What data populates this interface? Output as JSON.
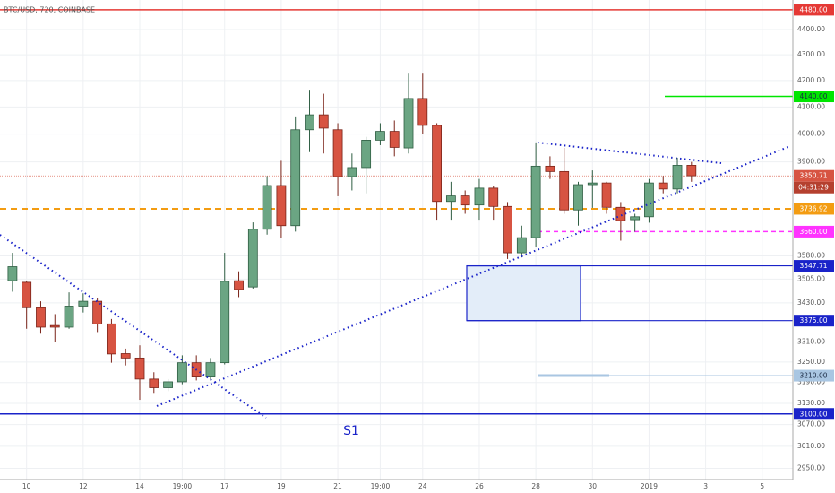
{
  "chart_data": {
    "type": "candlestick",
    "title": "BTC/USD, 720, COINBASE",
    "annotation": "S1",
    "countdown": "04:31:29",
    "log_scale": true,
    "grid": true,
    "up_color": "#6ba583",
    "down_color": "#d75442",
    "categories": [
      null,
      "10",
      null,
      null,
      null,
      "12",
      null,
      null,
      null,
      "14",
      null,
      null,
      "19:00",
      null,
      null,
      "17",
      null,
      null,
      null,
      "19",
      null,
      null,
      null,
      "21",
      null,
      null,
      "19:00",
      null,
      null,
      "24",
      null,
      null,
      null,
      "26",
      null,
      null,
      null,
      "28",
      null,
      null,
      null,
      "30",
      null,
      null,
      null,
      "2019",
      null,
      null,
      null,
      "3",
      null,
      null,
      null,
      "5",
      null
    ],
    "open": [
      3500,
      3495,
      3415,
      3360,
      3355,
      3420,
      3435,
      3365,
      3275,
      3262,
      3200,
      3175,
      3192,
      3248,
      3206,
      3248,
      3500,
      3480,
      3668,
      3817,
      3680,
      4016,
      4071,
      4016,
      3848,
      3880,
      3978,
      4010,
      3950,
      4132,
      4032,
      3762,
      3781,
      3750,
      3808,
      3745,
      3590,
      3640,
      3885,
      3866,
      3733,
      3820,
      3826,
      3742,
      3700,
      3710,
      3826,
      3805,
      3888,
      null,
      null,
      null,
      null,
      null,
      null
    ],
    "high": [
      3590,
      3500,
      3435,
      3395,
      3463,
      3460,
      3445,
      3380,
      3290,
      3300,
      3220,
      3200,
      3270,
      3270,
      3262,
      3590,
      3530,
      3691,
      3850,
      3904,
      4065,
      4165,
      4150,
      4040,
      3930,
      3990,
      4040,
      4050,
      4230,
      4230,
      4040,
      3830,
      3800,
      3840,
      3815,
      3760,
      3680,
      3970,
      3920,
      3950,
      3830,
      3870,
      3830,
      3760,
      3720,
      3840,
      3850,
      3915,
      3900,
      null,
      null,
      null,
      null,
      null,
      null
    ],
    "low": [
      3465,
      3350,
      3335,
      3310,
      3350,
      3400,
      3340,
      3248,
      3240,
      3140,
      3160,
      3165,
      3185,
      3196,
      3196,
      3243,
      3448,
      3475,
      3650,
      3640,
      3660,
      3935,
      3930,
      3780,
      3800,
      3790,
      3960,
      3920,
      3930,
      4000,
      3700,
      3700,
      3720,
      3700,
      3700,
      3570,
      3575,
      3610,
      3840,
      3720,
      3680,
      3740,
      3720,
      3630,
      3660,
      3690,
      3790,
      3790,
      3830,
      null,
      null,
      null,
      null,
      null,
      null
    ],
    "close": [
      3545,
      3415,
      3355,
      3355,
      3420,
      3435,
      3365,
      3274,
      3262,
      3200,
      3175,
      3192,
      3248,
      3206,
      3248,
      3498,
      3472,
      3668,
      3817,
      3680,
      4016,
      4071,
      4022,
      3848,
      3880,
      3978,
      4010,
      3952,
      4132,
      4032,
      3762,
      3781,
      3750,
      3808,
      3745,
      3590,
      3640,
      3885,
      3866,
      3733,
      3820,
      3826,
      3742,
      3697,
      3710,
      3826,
      3805,
      3888,
      3851,
      null,
      null,
      null,
      null,
      null,
      null
    ],
    "ylim": [
      2920,
      4520
    ],
    "yticks": [
      {
        "value": 2950,
        "label": "2950.00"
      },
      {
        "value": 3010,
        "label": "3010.00"
      },
      {
        "value": 3070,
        "label": "3070.00"
      },
      {
        "value": 3130,
        "label": "3130.00"
      },
      {
        "value": 3190,
        "label": "3190.00"
      },
      {
        "value": 3250,
        "label": "3250.00"
      },
      {
        "value": 3310,
        "label": "3310.00"
      },
      {
        "value": 3430,
        "label": "3430.00"
      },
      {
        "value": 3505,
        "label": "3505.00"
      },
      {
        "value": 3580,
        "label": "3580.00"
      },
      {
        "value": 3900,
        "label": "3900.00"
      },
      {
        "value": 4000,
        "label": "4000.00"
      },
      {
        "value": 4100,
        "label": "4100.00"
      },
      {
        "value": 4200,
        "label": "4200.00"
      },
      {
        "value": 4300,
        "label": "4300.00"
      },
      {
        "value": 4400,
        "label": "4400.00"
      }
    ],
    "levels": [
      {
        "value": 4480,
        "label": "4480.00",
        "color": "#e53935"
      },
      {
        "value": 4140,
        "label": "4140.00",
        "color": "#00e600"
      },
      {
        "value": 3850.71,
        "label": "3850.71",
        "color": "#d75442"
      },
      {
        "value": 3736.92,
        "label": "3736.92",
        "color": "#f39c12"
      },
      {
        "value": 3660,
        "label": "3660.00",
        "color": "#ff33ff"
      },
      {
        "value": 3547.71,
        "label": "3547.71",
        "color": "#1a23c9"
      },
      {
        "value": 3375,
        "label": "3375.00",
        "color": "#1a23c9"
      },
      {
        "value": 3210,
        "label": "3210.00",
        "color": "#a9c6e2"
      },
      {
        "value": 3100,
        "label": "3100.00",
        "color": "#1a23c9"
      }
    ]
  }
}
